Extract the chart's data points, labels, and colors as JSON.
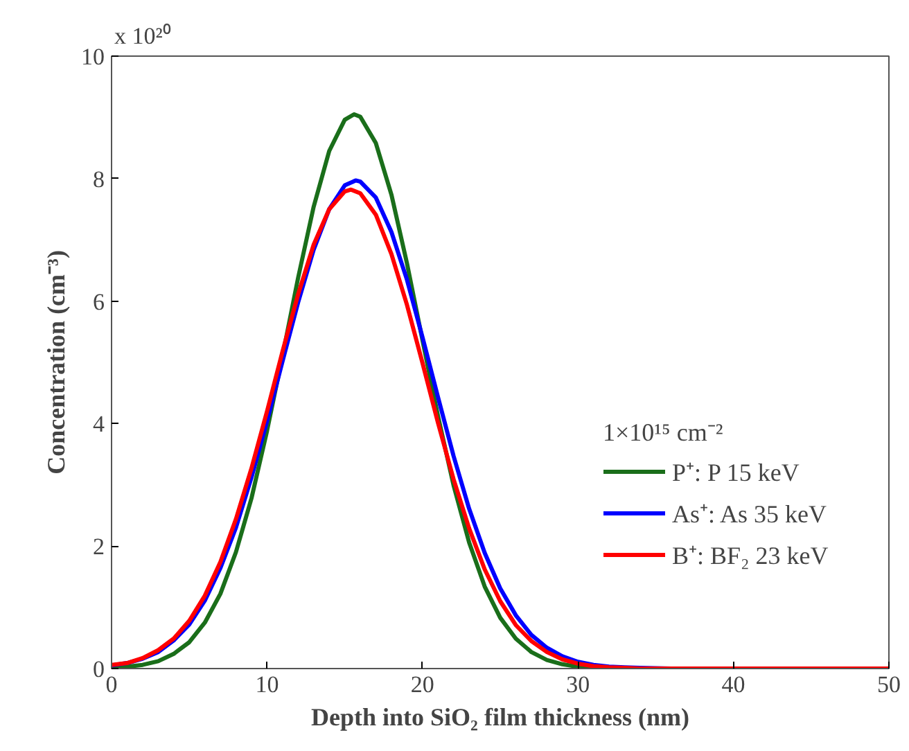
{
  "chart_data": {
    "type": "line",
    "xlabel": "Depth into SiO₂ film thickness (nm)",
    "ylabel": "Concentration (cm⁻³)",
    "legend_title": "1×10¹⁵ cm⁻²",
    "annotations": [
      "x 10²⁰"
    ],
    "xlim": [
      0,
      50
    ],
    "xticks": [
      0,
      10,
      20,
      30,
      40,
      50
    ],
    "ylim": [
      0,
      10
    ],
    "yticks": [
      0,
      2,
      4,
      6,
      8,
      10
    ],
    "grid": false,
    "legend": "right",
    "marker": "none",
    "line_style": "solid",
    "series": [
      {
        "name": "P⁺: P 15 keV",
        "color": "#1a6e1a",
        "x": [
          0,
          1,
          2,
          3,
          4,
          5,
          6,
          7,
          8,
          9,
          10,
          11,
          12,
          13,
          14,
          15,
          15.6,
          16,
          17,
          18,
          19,
          20,
          21,
          22,
          23,
          24,
          25,
          26,
          27,
          28,
          29,
          30,
          31,
          32,
          33
        ],
        "values": [
          0.01,
          0.03,
          0.06,
          0.12,
          0.24,
          0.43,
          0.75,
          1.22,
          1.9,
          2.78,
          3.88,
          5.11,
          6.38,
          7.54,
          8.45,
          8.96,
          9.05,
          9.01,
          8.58,
          7.74,
          6.62,
          5.36,
          4.12,
          2.99,
          2.06,
          1.34,
          0.83,
          0.49,
          0.27,
          0.14,
          0.07,
          0.03,
          0.02,
          0.01,
          0
        ]
      },
      {
        "name": "As⁺: As 35 keV",
        "color": "#0000ff",
        "x": [
          0,
          1,
          2,
          3,
          4,
          5,
          6,
          7,
          8,
          9,
          10,
          11,
          12,
          13,
          14,
          15,
          15.7,
          16,
          17,
          18,
          19,
          20,
          21,
          22,
          23,
          24,
          25,
          26,
          27,
          28,
          29,
          30,
          31,
          32,
          33,
          34,
          36,
          40
        ],
        "values": [
          0.05,
          0.09,
          0.16,
          0.27,
          0.46,
          0.72,
          1.11,
          1.64,
          2.3,
          3.12,
          4.04,
          5.02,
          5.98,
          6.84,
          7.5,
          7.89,
          7.97,
          7.95,
          7.69,
          7.13,
          6.35,
          5.41,
          4.43,
          3.47,
          2.61,
          1.89,
          1.31,
          0.87,
          0.55,
          0.34,
          0.2,
          0.11,
          0.06,
          0.03,
          0.02,
          0.01,
          0,
          0
        ]
      },
      {
        "name": "B⁺: BF₂ 23 keV",
        "color": "#ff0000",
        "x": [
          0,
          1,
          2,
          3,
          4,
          5,
          6,
          7,
          8,
          9,
          10,
          11,
          12,
          13,
          14,
          15,
          15.4,
          16,
          17,
          18,
          19,
          20,
          21,
          22,
          23,
          24,
          25,
          26,
          27,
          28,
          29,
          30,
          31,
          32,
          33,
          34,
          36,
          40,
          45,
          50
        ],
        "values": [
          0.06,
          0.09,
          0.17,
          0.3,
          0.49,
          0.78,
          1.19,
          1.74,
          2.44,
          3.27,
          4.2,
          5.18,
          6.11,
          6.92,
          7.5,
          7.79,
          7.82,
          7.76,
          7.41,
          6.77,
          5.94,
          4.99,
          4.01,
          3.09,
          2.29,
          1.62,
          1.1,
          0.71,
          0.45,
          0.27,
          0.15,
          0.08,
          0.04,
          0.02,
          0.01,
          0,
          0,
          0,
          0,
          0
        ]
      }
    ]
  }
}
